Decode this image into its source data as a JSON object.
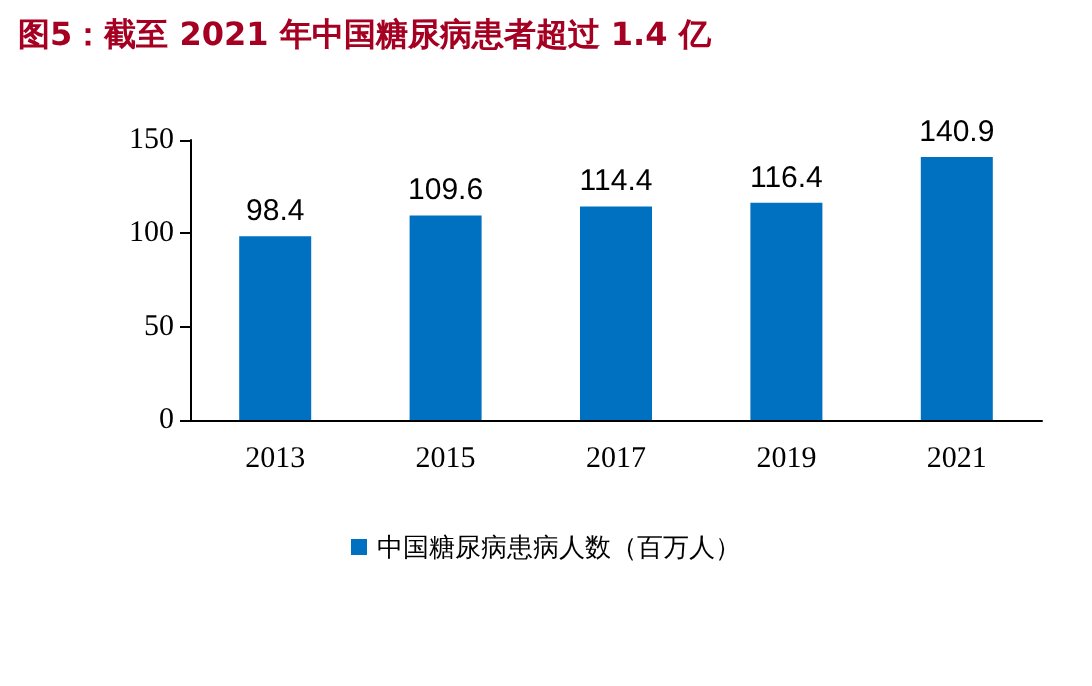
{
  "chart_data": {
    "type": "bar",
    "title": "图5：截至 2021 年中国糖尿病患者超过 1.4 亿",
    "categories": [
      "2013",
      "2015",
      "2017",
      "2019",
      "2021"
    ],
    "series": [
      {
        "name": "中国糖尿病患病人数（百万人）",
        "color": "#0070c0",
        "values": [
          98.4,
          109.6,
          114.4,
          116.4,
          140.9
        ]
      }
    ],
    "ylim": [
      0,
      150
    ],
    "yticks": [
      0,
      50,
      100,
      150
    ],
    "grid": false,
    "legend": "bottom",
    "data_labels": true
  }
}
